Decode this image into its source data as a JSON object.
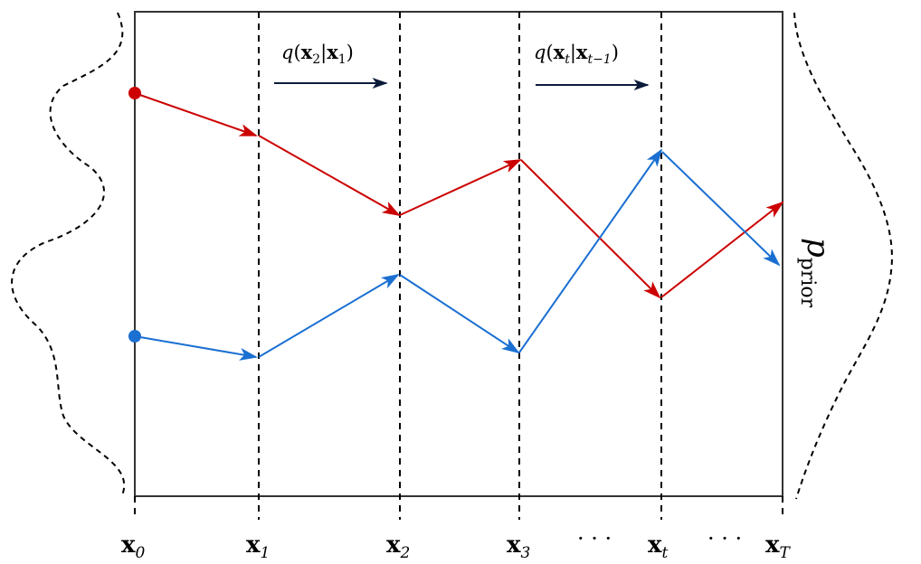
{
  "steps": [
    {
      "id": "x0",
      "main": "x",
      "sub": "0"
    },
    {
      "id": "x1",
      "main": "x",
      "sub": "1"
    },
    {
      "id": "x2",
      "main": "x",
      "sub": "2"
    },
    {
      "id": "x3",
      "main": "x",
      "sub": "3"
    },
    {
      "id": "dots1",
      "ellipsis": "· · ·"
    },
    {
      "id": "xt",
      "main": "x",
      "sub": "t"
    },
    {
      "id": "dots2",
      "ellipsis": "· · ·"
    },
    {
      "id": "xT",
      "main": "x",
      "sub": "T"
    }
  ],
  "annotations": {
    "q1": {
      "fn": "q",
      "open": "(",
      "a": "x",
      "a_sub": "2",
      "bar": "|",
      "b": "x",
      "b_sub": "1",
      "close": ")"
    },
    "q2": {
      "fn": "q",
      "open": "(",
      "a": "x",
      "a_sub": "t",
      "bar": "|",
      "b": "x",
      "b_sub": "t−1",
      "close": ")"
    }
  },
  "prior_label": {
    "main": "p",
    "sub": "prior"
  },
  "colors": {
    "red_path": "#cc0000",
    "blue_path": "#1a6fd1",
    "annotation_arrow": "#0d1b3a",
    "frame": "#333333"
  }
}
